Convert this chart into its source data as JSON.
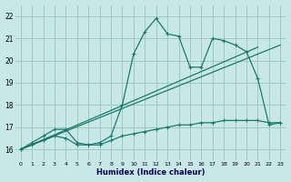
{
  "xlabel": "Humidex (Indice chaleur)",
  "xlim": [
    -0.5,
    23.5
  ],
  "ylim": [
    15.5,
    22.5
  ],
  "xticks": [
    0,
    1,
    2,
    3,
    4,
    5,
    6,
    7,
    8,
    9,
    10,
    11,
    12,
    13,
    14,
    15,
    16,
    17,
    18,
    19,
    20,
    21,
    22,
    23
  ],
  "yticks": [
    16,
    17,
    18,
    19,
    20,
    21,
    22
  ],
  "bg_color": "#c8e8e8",
  "grid_color": "#a0c8c8",
  "line_color": "#1a7a6a",
  "curve1_x": [
    0,
    1,
    2,
    3,
    4,
    5,
    6,
    7,
    8,
    9,
    10,
    11,
    12,
    13,
    14,
    15,
    16,
    17,
    18,
    19,
    20,
    21,
    22,
    23
  ],
  "curve1_y": [
    16.0,
    16.3,
    16.6,
    16.9,
    16.9,
    16.3,
    16.2,
    16.3,
    16.6,
    18.0,
    20.3,
    21.3,
    21.9,
    21.2,
    21.1,
    19.7,
    19.7,
    21.0,
    20.9,
    20.7,
    20.4,
    19.2,
    17.1,
    17.2
  ],
  "curve2_x": [
    0,
    1,
    2,
    3,
    4,
    5,
    6,
    7,
    8,
    9,
    10,
    11,
    12,
    13,
    14,
    15,
    16,
    17,
    18,
    19,
    20,
    21,
    22,
    23
  ],
  "curve2_y": [
    16.0,
    16.2,
    16.4,
    16.6,
    16.5,
    16.2,
    16.2,
    16.2,
    16.4,
    16.6,
    16.7,
    16.8,
    16.9,
    17.0,
    17.1,
    17.1,
    17.2,
    17.2,
    17.3,
    17.3,
    17.3,
    17.3,
    17.2,
    17.2
  ],
  "trend1_x": [
    0,
    23
  ],
  "trend1_y": [
    16.0,
    20.7
  ],
  "trend2_x": [
    0,
    21
  ],
  "trend2_y": [
    16.0,
    20.6
  ]
}
